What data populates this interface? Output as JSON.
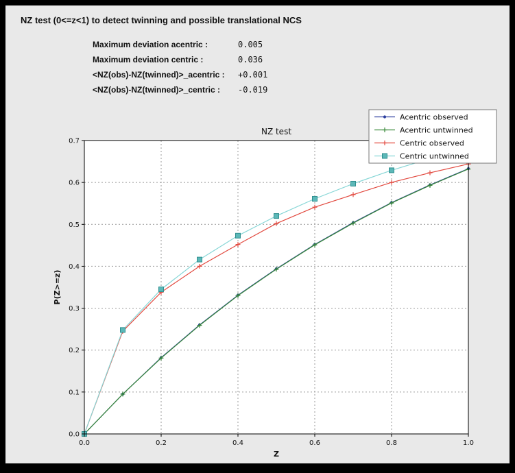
{
  "window": {
    "frame_color": "#000000",
    "panel_color": "#e9e9e9"
  },
  "header": {
    "title": "NZ test (0<=z<1) to detect twinning and possible translational NCS"
  },
  "stats": [
    {
      "label": "Maximum deviation acentric :",
      "value": "0.005"
    },
    {
      "label": "Maximum deviation centric :",
      "value": "0.036"
    },
    {
      "label": "<NZ(obs)-NZ(twinned)>_acentric :",
      "value": "+0.001"
    },
    {
      "label": "<NZ(obs)-NZ(twinned)>_centric :",
      "value": "-0.019"
    }
  ],
  "chart_data": {
    "type": "line",
    "title": "NZ test",
    "xlabel": "Z",
    "ylabel": "P(Z>=z)",
    "xlim": [
      0.0,
      1.0
    ],
    "ylim": [
      0.0,
      0.7
    ],
    "xticks": [
      0.0,
      0.2,
      0.4,
      0.6,
      0.8,
      1.0
    ],
    "yticks": [
      0.0,
      0.1,
      0.2,
      0.3,
      0.4,
      0.5,
      0.6,
      0.7
    ],
    "grid": true,
    "grid_style": "dashed",
    "grid_color": "#9a9a9a",
    "plot_bg": "#ffffff",
    "legend_position": "upper right",
    "x": [
      0.0,
      0.1,
      0.2,
      0.3,
      0.4,
      0.5,
      0.6,
      0.7,
      0.8,
      0.9,
      1.0
    ],
    "series": [
      {
        "name": "Acentric observed",
        "color": "#2c3f9e",
        "marker": "circle",
        "values": [
          0.0,
          0.095,
          0.182,
          0.26,
          0.331,
          0.394,
          0.452,
          0.504,
          0.552,
          0.594,
          0.633
        ]
      },
      {
        "name": "Acentric untwinned",
        "color": "#3a8a3a",
        "marker": "plus",
        "values": [
          0.0,
          0.095,
          0.181,
          0.259,
          0.33,
          0.393,
          0.451,
          0.503,
          0.551,
          0.593,
          0.632
        ]
      },
      {
        "name": "Centric observed",
        "color": "#e2493f",
        "marker": "plus",
        "values": [
          0.0,
          0.245,
          0.338,
          0.4,
          0.452,
          0.502,
          0.541,
          0.571,
          0.6,
          0.623,
          0.644
        ]
      },
      {
        "name": "Centric untwinned",
        "color": "#86d6d6",
        "marker": "square",
        "marker_fill": "#5cb8b8",
        "marker_edge": "#2f8f8f",
        "values": [
          0.0,
          0.248,
          0.345,
          0.416,
          0.473,
          0.52,
          0.561,
          0.597,
          0.629,
          0.657,
          0.683
        ]
      }
    ]
  }
}
